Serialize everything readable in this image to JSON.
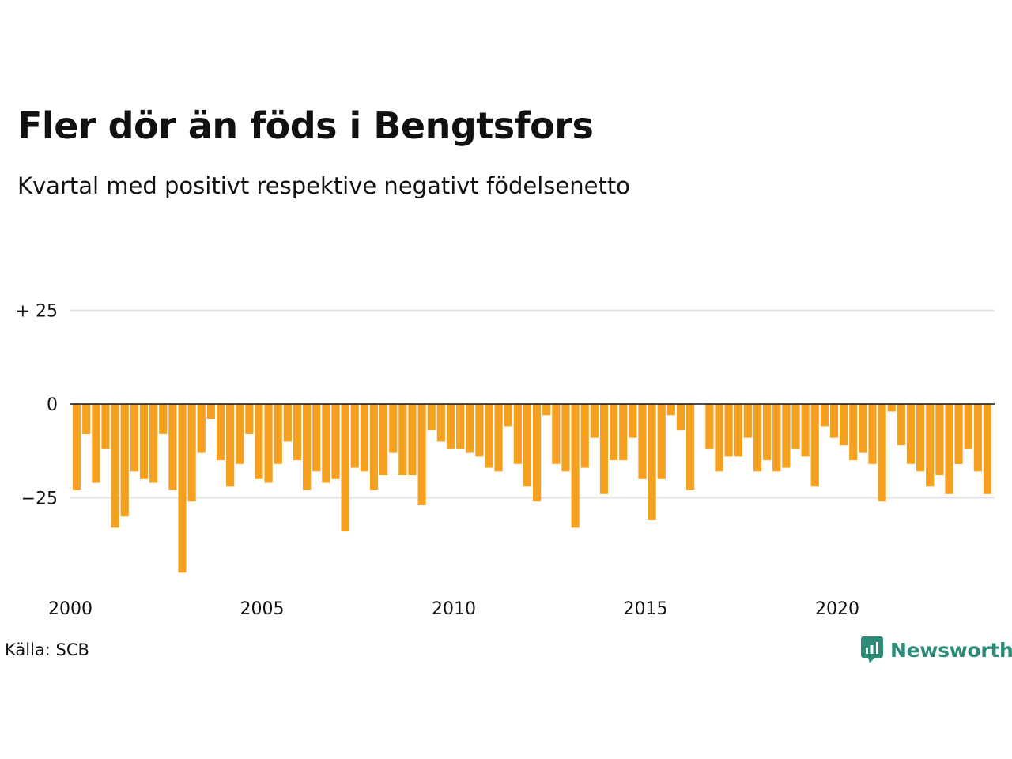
{
  "title": "Fler dör än föds i Bengtsfors",
  "subtitle": "Kvartal med positivt respektive negativt födelsenetto",
  "source": "Källa: SCB",
  "brand": "Newsworthy",
  "colors": {
    "bar": "#f5a11f",
    "grid": "#e3e3e3",
    "zero": "#111111",
    "brand": "#2e8b7a"
  },
  "chart_data": {
    "type": "bar",
    "title": "Fler dör än föds i Bengtsfors",
    "subtitle": "Kvartal med positivt respektive negativt födelsenetto",
    "x_start": "2000 Q1",
    "x_end": "2023 Q4",
    "period": "quarter",
    "ylim": [
      -45,
      39
    ],
    "y_ticks": [
      25,
      0,
      -25
    ],
    "y_tick_labels": [
      "+ 25",
      "0",
      "−25"
    ],
    "x_tick_labels": [
      "2000",
      "2005",
      "2010",
      "2015",
      "2020"
    ],
    "grid": true,
    "series": [
      {
        "values": [
          -23,
          -8,
          -21,
          -12,
          -33,
          -30,
          -18,
          -20,
          -21,
          -8,
          -23,
          -45,
          -26,
          -13,
          -4,
          -15,
          -22,
          -16,
          -8,
          -20,
          -21,
          -16,
          -10,
          -15,
          -23,
          -18,
          -21,
          -20,
          -34,
          -17,
          -18,
          -23,
          -19,
          -13,
          -19,
          -19,
          -27,
          -7,
          -10,
          -12,
          -12,
          -13,
          -14,
          -17,
          -18,
          -6,
          -16,
          -22,
          -26,
          -3,
          -16,
          -18,
          -33,
          -17,
          -9,
          -24,
          -15,
          -15,
          -9,
          -20,
          -31,
          -20,
          -3,
          -7,
          -23,
          0,
          -12,
          -18,
          -14,
          -14,
          -9,
          -18,
          -15,
          -18,
          -17,
          -12,
          -14,
          -22,
          -6,
          -9,
          -11,
          -15,
          -13,
          -16,
          -26,
          -2,
          -11,
          -16,
          -18,
          -22,
          -19,
          -24,
          -16,
          -12,
          -18,
          -24
        ]
      }
    ]
  }
}
